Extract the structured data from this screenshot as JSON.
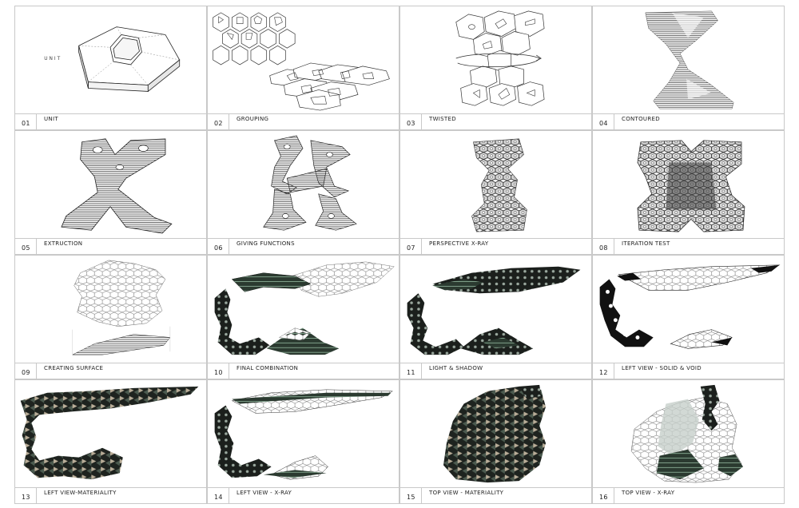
{
  "panels": [
    {
      "num": "01",
      "title": "UNIT",
      "label": "UNIT"
    },
    {
      "num": "02",
      "title": "GROUPING"
    },
    {
      "num": "03",
      "title": "TWISTED"
    },
    {
      "num": "04",
      "title": "CONTOURED"
    },
    {
      "num": "05",
      "title": "EXTRUCTION"
    },
    {
      "num": "06",
      "title": "GIVING FUNCTIONS"
    },
    {
      "num": "07",
      "title": "PERSPECTIVE X-RAY"
    },
    {
      "num": "08",
      "title": "ITERATION TEST"
    },
    {
      "num": "09",
      "title": "CREATING SURFACE"
    },
    {
      "num": "10",
      "title": "FINAL COMBINATION"
    },
    {
      "num": "11",
      "title": "LIGHT & SHADOW"
    },
    {
      "num": "12",
      "title": "LEFT VIEW - SOLID & VOID"
    },
    {
      "num": "13",
      "title": "LEFT VIEW-MATERIALITY"
    },
    {
      "num": "14",
      "title": "LEFT VIEW - X-RAY"
    },
    {
      "num": "15",
      "title": "TOP VIEW - MATERIALITY"
    },
    {
      "num": "16",
      "title": "TOP VIEW - X-RAY"
    }
  ],
  "colors": {
    "line": "#222222",
    "dark": "#1b1f1c",
    "green": "#5f7c68",
    "beige": "#b9ad98",
    "grid": "#c9c9c9"
  }
}
